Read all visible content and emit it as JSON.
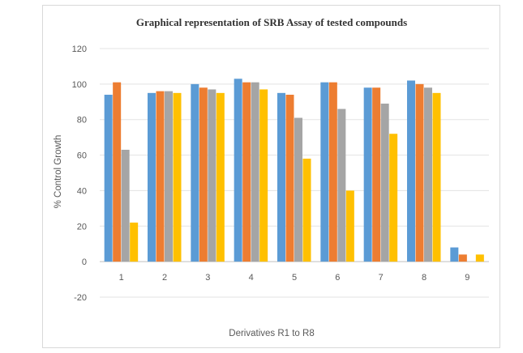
{
  "chart_data": {
    "type": "bar",
    "title": "Graphical representation of SRB Assay of tested compounds",
    "xlabel": "Derivatives R1 to R8",
    "ylabel": "% Control Growth",
    "ylim": [
      -20,
      120
    ],
    "yticks": [
      -20,
      0,
      20,
      40,
      60,
      80,
      100,
      120
    ],
    "grid": true,
    "legend": "none",
    "categories": [
      "1",
      "2",
      "3",
      "4",
      "5",
      "6",
      "7",
      "8",
      "9"
    ],
    "series": [
      {
        "color": "#5b9bd5",
        "values": [
          94,
          95,
          100,
          103,
          95,
          101,
          98,
          102,
          8
        ]
      },
      {
        "color": "#ed7d31",
        "values": [
          101,
          96,
          98,
          101,
          94,
          101,
          98,
          100,
          4
        ]
      },
      {
        "color": "#a5a5a5",
        "values": [
          63,
          96,
          97,
          101,
          81,
          86,
          89,
          98,
          0
        ]
      },
      {
        "color": "#ffc000",
        "values": [
          22,
          95,
          95,
          97,
          58,
          40,
          72,
          95,
          4
        ]
      }
    ]
  }
}
